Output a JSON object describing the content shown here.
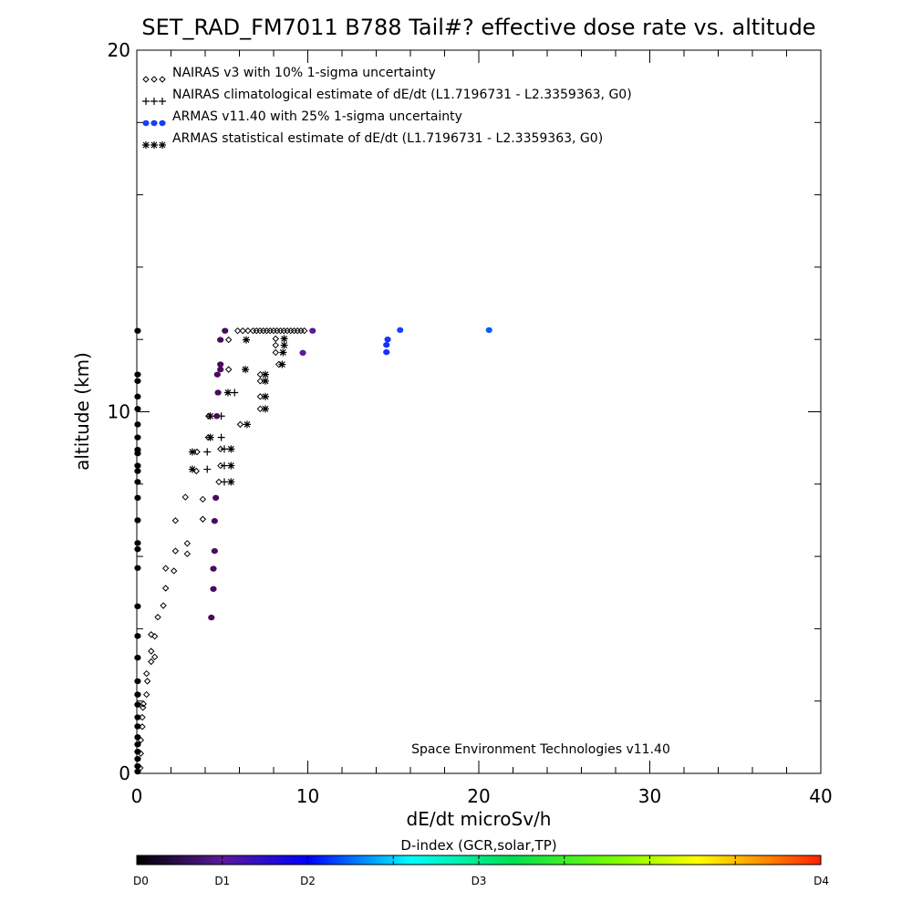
{
  "chart_data": {
    "type": "scatter",
    "title": "SET_RAD_FM7011  B788 Tail#? effective dose rate vs. altitude",
    "xlabel": "dE/dt microSv/h",
    "ylabel": "altitude (km)",
    "xlim": [
      0,
      40
    ],
    "ylim": [
      0,
      20
    ],
    "x_ticks": [
      "0",
      "10",
      "20",
      "30",
      "40"
    ],
    "x_tick_values": [
      0,
      10,
      20,
      30,
      40
    ],
    "y_ticks": [
      "0",
      "10",
      "20"
    ],
    "y_tick_values": [
      0,
      10,
      20
    ],
    "x_minor_step": 2,
    "y_minor_step": 2,
    "grid": false,
    "legend_position": "top-left",
    "legend": [
      {
        "marker": "diamond",
        "label": "NAIRAS v3 with 10% 1-sigma uncertainty",
        "color": "#000000"
      },
      {
        "marker": "plus",
        "label": "NAIRAS climatological estimate of dE/dt (L1.7196731 - L2.3359363, G0)",
        "color": "#000000"
      },
      {
        "marker": "dot",
        "label": "ARMAS v11.40 with 25% 1-sigma uncertainty",
        "color": "#1a3cff"
      },
      {
        "marker": "asterisk",
        "label": "ARMAS statistical estimate of dE/dt (L1.7196731 - L2.3359363, G0)",
        "color": "#000000"
      }
    ],
    "annotation": "Space Environment Technologies v11.40",
    "series": [
      {
        "name": "NAIRAS v3",
        "marker": "diamond",
        "points": [
          [
            5.9,
            12.24
          ],
          [
            6.2,
            12.24
          ],
          [
            6.5,
            12.24
          ],
          [
            6.8,
            12.24
          ],
          [
            7.0,
            12.24
          ],
          [
            7.2,
            12.24
          ],
          [
            7.4,
            12.24
          ],
          [
            7.6,
            12.24
          ],
          [
            7.8,
            12.24
          ],
          [
            8.0,
            12.24
          ],
          [
            8.2,
            12.24
          ],
          [
            8.4,
            12.24
          ],
          [
            8.6,
            12.24
          ],
          [
            8.8,
            12.24
          ],
          [
            9.0,
            12.24
          ],
          [
            9.2,
            12.24
          ],
          [
            9.4,
            12.24
          ],
          [
            9.6,
            12.24
          ],
          [
            9.8,
            12.24
          ],
          [
            5.37,
            11.99
          ],
          [
            8.12,
            12.02
          ],
          [
            8.12,
            11.84
          ],
          [
            8.12,
            11.64
          ],
          [
            8.3,
            11.31
          ],
          [
            5.37,
            11.17
          ],
          [
            7.22,
            11.03
          ],
          [
            7.22,
            10.85
          ],
          [
            7.22,
            10.42
          ],
          [
            7.22,
            10.08
          ],
          [
            4.2,
            9.88
          ],
          [
            6.05,
            9.65
          ],
          [
            4.18,
            9.29
          ],
          [
            3.52,
            8.89
          ],
          [
            4.9,
            8.97
          ],
          [
            4.9,
            8.51
          ],
          [
            3.48,
            8.36
          ],
          [
            4.8,
            8.06
          ],
          [
            2.84,
            7.64
          ],
          [
            3.86,
            7.58
          ],
          [
            2.26,
            6.99
          ],
          [
            3.86,
            7.03
          ],
          [
            2.95,
            6.36
          ],
          [
            2.26,
            6.15
          ],
          [
            2.95,
            6.07
          ],
          [
            1.69,
            5.67
          ],
          [
            2.17,
            5.6
          ],
          [
            1.69,
            5.12
          ],
          [
            1.55,
            4.64
          ],
          [
            1.23,
            4.32
          ],
          [
            0.84,
            3.84
          ],
          [
            1.05,
            3.79
          ],
          [
            0.84,
            3.38
          ],
          [
            1.05,
            3.22
          ],
          [
            0.84,
            3.09
          ],
          [
            0.57,
            2.76
          ],
          [
            0.62,
            2.55
          ],
          [
            0.57,
            2.18
          ],
          [
            0.39,
            1.92
          ],
          [
            0.36,
            1.82
          ],
          [
            0.32,
            1.55
          ],
          [
            0.32,
            1.29
          ],
          [
            0.23,
            0.92
          ],
          [
            0.23,
            0.55
          ],
          [
            0.2,
            0.15
          ]
        ]
      },
      {
        "name": "NAIRAS climatological",
        "marker": "plus",
        "points": [
          [
            5.72,
            10.53
          ],
          [
            4.94,
            9.88
          ],
          [
            4.94,
            9.29
          ],
          [
            4.12,
            8.89
          ],
          [
            4.12,
            8.41
          ],
          [
            5.12,
            8.97
          ],
          [
            5.12,
            8.51
          ],
          [
            5.12,
            8.06
          ]
        ]
      },
      {
        "name": "ARMAS statistical",
        "marker": "asterisk",
        "points": [
          [
            6.4,
            11.99
          ],
          [
            8.62,
            12.02
          ],
          [
            8.62,
            11.84
          ],
          [
            8.55,
            11.64
          ],
          [
            8.5,
            11.31
          ],
          [
            6.35,
            11.17
          ],
          [
            7.52,
            11.03
          ],
          [
            7.52,
            10.85
          ],
          [
            7.52,
            10.42
          ],
          [
            7.52,
            10.08
          ],
          [
            5.33,
            10.53
          ],
          [
            4.3,
            9.88
          ],
          [
            6.45,
            9.65
          ],
          [
            4.3,
            9.29
          ],
          [
            3.25,
            8.89
          ],
          [
            3.25,
            8.41
          ],
          [
            5.51,
            8.97
          ],
          [
            5.51,
            8.51
          ],
          [
            5.51,
            8.06
          ]
        ]
      },
      {
        "name": "ARMAS v11.40",
        "marker": "dot",
        "points": [
          {
            "x": 5.16,
            "y": 12.24,
            "color": "#4a0a5e"
          },
          {
            "x": 10.28,
            "y": 12.24,
            "color": "#5a1a9a"
          },
          {
            "x": 4.89,
            "y": 11.99,
            "color": "#4a0a5e"
          },
          {
            "x": 9.71,
            "y": 11.63,
            "color": "#5a1a9a"
          },
          {
            "x": 4.89,
            "y": 11.31,
            "color": "#4a0a5e"
          },
          {
            "x": 4.89,
            "y": 11.17,
            "color": "#4a0a5e"
          },
          {
            "x": 4.71,
            "y": 11.03,
            "color": "#4a0a5e"
          },
          {
            "x": 4.75,
            "y": 10.53,
            "color": "#4a0a5e"
          },
          {
            "x": 4.68,
            "y": 9.88,
            "color": "#4a0a5e"
          },
          {
            "x": 14.67,
            "y": 12.0,
            "color": "#1a30ff"
          },
          {
            "x": 14.6,
            "y": 11.85,
            "color": "#1a30ff"
          },
          {
            "x": 14.6,
            "y": 11.65,
            "color": "#1a30ff"
          },
          {
            "x": 15.4,
            "y": 12.26,
            "color": "#1a40ff"
          },
          {
            "x": 20.6,
            "y": 12.26,
            "color": "#0a5aff"
          },
          {
            "x": 4.62,
            "y": 7.62,
            "color": "#4a0a5e"
          },
          {
            "x": 4.55,
            "y": 6.98,
            "color": "#4a0a5e"
          },
          {
            "x": 4.55,
            "y": 6.15,
            "color": "#4a0a5e"
          },
          {
            "x": 4.48,
            "y": 5.66,
            "color": "#4a0a5e"
          },
          {
            "x": 4.48,
            "y": 5.1,
            "color": "#4a0a5e"
          },
          {
            "x": 4.36,
            "y": 4.31,
            "color": "#4a0a5e"
          },
          {
            "x": 0.05,
            "y": 12.24,
            "color": "#000000"
          },
          {
            "x": 0.05,
            "y": 11.03,
            "color": "#000000"
          },
          {
            "x": 0.05,
            "y": 10.85,
            "color": "#000000"
          },
          {
            "x": 0.05,
            "y": 10.42,
            "color": "#000000"
          },
          {
            "x": 0.05,
            "y": 10.08,
            "color": "#000000"
          },
          {
            "x": 0.05,
            "y": 9.65,
            "color": "#000000"
          },
          {
            "x": 0.05,
            "y": 9.29,
            "color": "#000000"
          },
          {
            "x": 0.05,
            "y": 8.95,
            "color": "#000000"
          },
          {
            "x": 0.05,
            "y": 8.85,
            "color": "#000000"
          },
          {
            "x": 0.05,
            "y": 8.51,
            "color": "#000000"
          },
          {
            "x": 0.05,
            "y": 8.36,
            "color": "#000000"
          },
          {
            "x": 0.05,
            "y": 8.06,
            "color": "#000000"
          },
          {
            "x": 0.05,
            "y": 7.62,
            "color": "#000000"
          },
          {
            "x": 0.05,
            "y": 7.0,
            "color": "#000000"
          },
          {
            "x": 0.05,
            "y": 6.37,
            "color": "#000000"
          },
          {
            "x": 0.05,
            "y": 6.2,
            "color": "#000000"
          },
          {
            "x": 0.05,
            "y": 5.68,
            "color": "#000000"
          },
          {
            "x": 0.05,
            "y": 4.62,
            "color": "#000000"
          },
          {
            "x": 0.05,
            "y": 3.8,
            "color": "#000000"
          },
          {
            "x": 0.05,
            "y": 3.2,
            "color": "#000000"
          },
          {
            "x": 0.05,
            "y": 2.55,
            "color": "#000000"
          },
          {
            "x": 0.05,
            "y": 2.18,
            "color": "#000000"
          },
          {
            "x": 0.05,
            "y": 1.9,
            "color": "#000000"
          },
          {
            "x": 0.05,
            "y": 1.55,
            "color": "#000000"
          },
          {
            "x": 0.05,
            "y": 1.3,
            "color": "#000000"
          },
          {
            "x": 0.05,
            "y": 1.0,
            "color": "#000000"
          },
          {
            "x": 0.05,
            "y": 0.8,
            "color": "#000000"
          },
          {
            "x": 0.05,
            "y": 0.6,
            "color": "#000000"
          },
          {
            "x": 0.05,
            "y": 0.4,
            "color": "#000000"
          },
          {
            "x": 0.05,
            "y": 0.2,
            "color": "#000000"
          },
          {
            "x": 0.05,
            "y": 0.05,
            "color": "#000000"
          }
        ]
      }
    ],
    "colorbar": {
      "title": "D-index (GCR,solar,TP)",
      "range": [
        0,
        4
      ],
      "labels": [
        {
          "text": "D0",
          "value": 0
        },
        {
          "text": "D1",
          "value": 0.5
        },
        {
          "text": "D2",
          "value": 1.0
        },
        {
          "text": "D3",
          "value": 2.0
        },
        {
          "text": "D4",
          "value": 4.0
        }
      ],
      "minor_ticks": [
        0.5,
        1.0,
        1.5,
        2.0,
        2.5,
        3.0,
        3.5
      ],
      "stops": [
        {
          "pos": 0,
          "color": "#000000"
        },
        {
          "pos": 0.125,
          "color": "#5a1a9a"
        },
        {
          "pos": 0.25,
          "color": "#0000ff"
        },
        {
          "pos": 0.4,
          "color": "#00ffff"
        },
        {
          "pos": 0.55,
          "color": "#00e050"
        },
        {
          "pos": 0.7,
          "color": "#7aff00"
        },
        {
          "pos": 0.82,
          "color": "#ffff00"
        },
        {
          "pos": 0.9,
          "color": "#ffa000"
        },
        {
          "pos": 1,
          "color": "#ff2000"
        }
      ]
    }
  }
}
